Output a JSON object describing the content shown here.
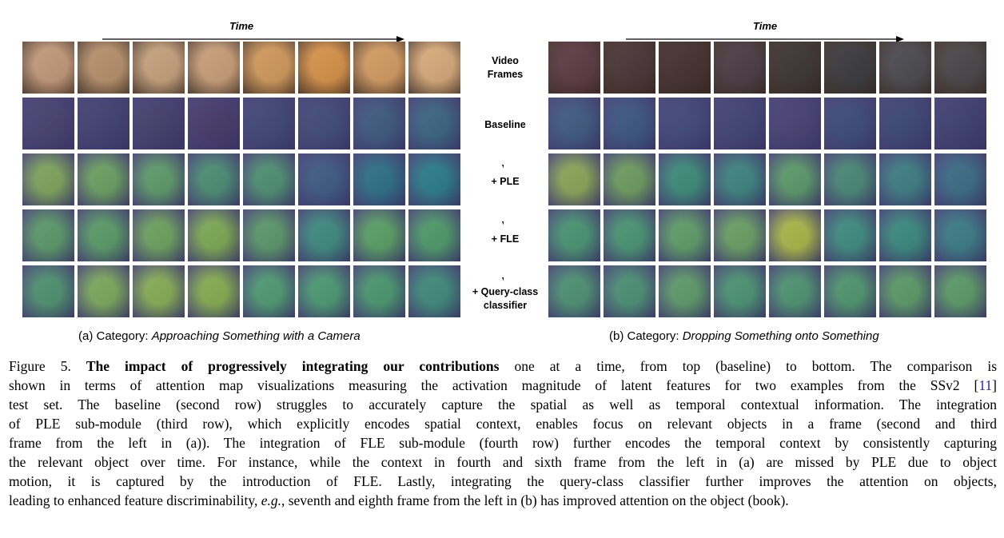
{
  "panel_a": {
    "time_label": "Time",
    "caption_prefix": "(a) Category: ",
    "caption_category": "Approaching Something with a Camera",
    "frame_colors": {
      "video": [
        "#c49a7a",
        "#b8916c",
        "#c6a27d",
        "#caa07a",
        "#d39a5d",
        "#d8934a",
        "#d49c63",
        "#d9ab7c"
      ],
      "baseline": [
        "#46406f",
        "#3f4070",
        "#433d6c",
        "#45396a",
        "#3f4676",
        "#3f4a78",
        "#3e5a7f",
        "#3b6482"
      ],
      "ple": [
        "#7ea55e",
        "#6ca062",
        "#5e9a6a",
        "#4c8d75",
        "#4f8f73",
        "#3e5a84",
        "#2d6f87",
        "#2b7c8a"
      ],
      "fle": [
        "#5c9a6a",
        "#5a9b68",
        "#6ea260",
        "#7eaa55",
        "#5c986b",
        "#3f8b80",
        "#5a9f66",
        "#4f9a6b"
      ],
      "qcc": [
        "#4f9270",
        "#7ca95e",
        "#86ad56",
        "#86ad52",
        "#4f9a74",
        "#4c9a74",
        "#4a9870",
        "#3f8b7c"
      ]
    }
  },
  "panel_b": {
    "time_label": "Time",
    "caption_prefix": "(b) Category: ",
    "caption_category": "Dropping Something onto Something",
    "frame_colors": {
      "video": [
        "#5c3a44",
        "#4a3436",
        "#43302e",
        "#4a3c44",
        "#3c3434",
        "#3a3a3e",
        "#4b4a50",
        "#4a4548"
      ],
      "baseline": [
        "#3e5a80",
        "#3b5684",
        "#40487a",
        "#3f4274",
        "#484072",
        "#3c4a7a",
        "#3a4674",
        "#3c3e70"
      ],
      "ple": [
        "#8aa659",
        "#6e9c60",
        "#3d8b7a",
        "#3d8380",
        "#5c9a6a",
        "#4a8877",
        "#3e7d84",
        "#3b6c86"
      ],
      "fle": [
        "#4a9574",
        "#4a9574",
        "#5f9d69",
        "#6aa065",
        "#a9b84a",
        "#3f8c80",
        "#3b8a80",
        "#3b7c86"
      ],
      "qcc": [
        "#4e9274",
        "#4c9176",
        "#5e9a6a",
        "#4c9474",
        "#4f9472",
        "#50966f",
        "#5c9a68",
        "#5c9a68"
      ]
    }
  },
  "row_labels": {
    "video": [
      "Video",
      "Frames"
    ],
    "baseline": "Baseline",
    "ple": "+  PLE",
    "fle": "+  FLE",
    "qcc": [
      "+  Query-class",
      "classifier"
    ]
  },
  "figure_caption": {
    "lines": [
      {
        "pre": "Figure 5. ",
        "bold": "The impact of progressively integrating our contributions",
        "post": " one at a time, from top (baseline) to bottom.  The comparison is"
      },
      {
        "pre": "shown in terms of attention map visualizations measuring the activation magnitude of latent features for two examples from the SSv2 [",
        "cite": "11",
        "post": "]"
      },
      {
        "text": "test set.  The baseline (second row) struggles to accurately capture the spatial as well as temporal contextual information.  The integration"
      },
      {
        "text": "of PLE sub-module (third row), which explicitly encodes spatial context, enables focus on relevant objects in a frame (second and third"
      },
      {
        "text": "frame from the left in (a)).  The integration of FLE sub-module (fourth row) further encodes the temporal context by consistently capturing"
      },
      {
        "text": "the relevant object over time.  For instance, while the context in fourth and sixth frame from the left in (a) are missed by PLE due to object"
      },
      {
        "text": "motion, it is captured by the introduction of FLE. Lastly, integrating the query-class classifier further improves the attention on objects,"
      },
      {
        "pre": "leading to enhanced feature discriminability, ",
        "ital": "e.g.",
        "post": ", seventh and eighth frame from the left in (b) has improved attention on the object (book)."
      }
    ]
  }
}
